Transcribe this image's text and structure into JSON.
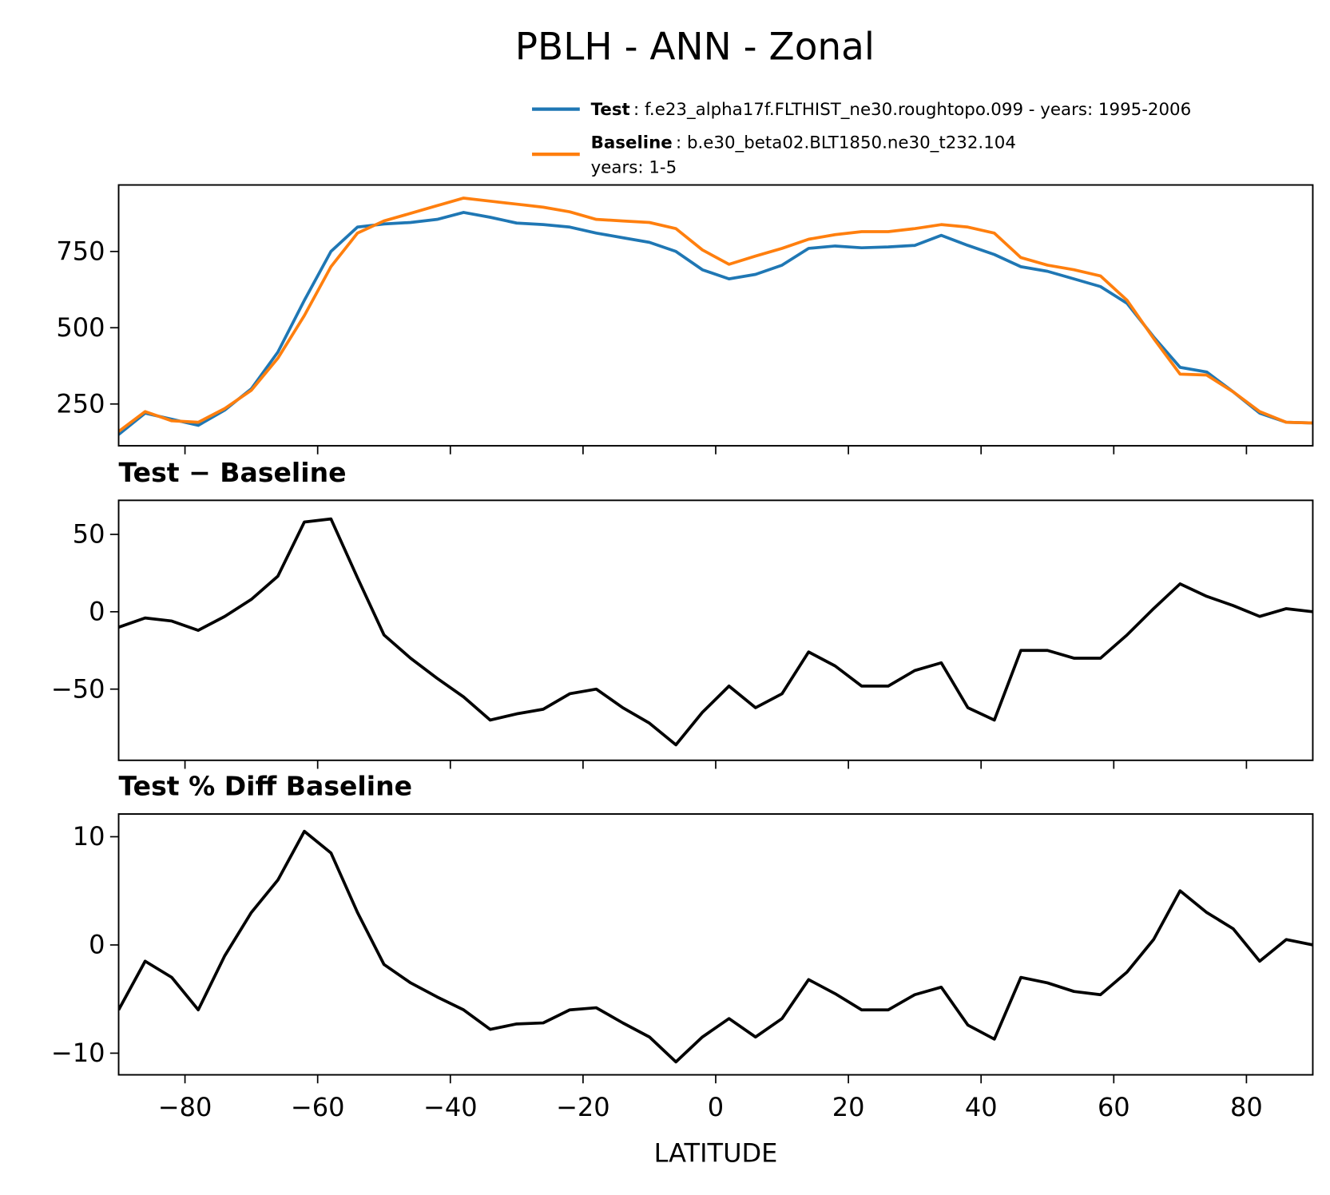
{
  "chart_data": [
    {
      "type": "line",
      "title": "PBLH - ANN - Zonal",
      "x": [
        -90,
        -86,
        -82,
        -78,
        -74,
        -70,
        -66,
        -62,
        -58,
        -54,
        -50,
        -46,
        -42,
        -38,
        -34,
        -30,
        -26,
        -22,
        -18,
        -14,
        -10,
        -6,
        -2,
        2,
        6,
        10,
        14,
        18,
        22,
        26,
        30,
        34,
        38,
        42,
        46,
        50,
        54,
        58,
        62,
        66,
        70,
        74,
        78,
        82,
        86,
        90
      ],
      "xlim": [
        -90,
        90
      ],
      "ylim": [
        113,
        968
      ],
      "yticks": [
        250,
        500,
        750
      ],
      "series": [
        {
          "name": "Test",
          "label_lines": [
            ": f.e23_alpha17f.FLTHIST_ne30.roughtopo.099 - years: 1995-2006"
          ],
          "color": "#1f77b4",
          "values": [
            150,
            220,
            200,
            180,
            230,
            300,
            420,
            590,
            750,
            830,
            840,
            845,
            855,
            878,
            862,
            843,
            838,
            830,
            810,
            795,
            780,
            750,
            690,
            660,
            675,
            705,
            760,
            768,
            762,
            765,
            770,
            803,
            770,
            740,
            700,
            685,
            660,
            635,
            580,
            470,
            370,
            355,
            290,
            220,
            190,
            188
          ]
        },
        {
          "name": "Baseline",
          "label_lines": [
            ": b.e30_beta02.BLT1850.ne30_t232.104",
            "years: 1-5"
          ],
          "color": "#ff7f0e",
          "values": [
            160,
            225,
            195,
            190,
            235,
            295,
            400,
            540,
            700,
            810,
            850,
            875,
            900,
            925,
            915,
            905,
            895,
            880,
            855,
            850,
            845,
            825,
            755,
            708,
            735,
            760,
            790,
            805,
            815,
            815,
            825,
            838,
            830,
            810,
            730,
            705,
            690,
            670,
            590,
            465,
            348,
            345,
            290,
            225,
            190,
            188
          ]
        }
      ]
    },
    {
      "type": "line",
      "title": "Test − Baseline",
      "ylim": [
        -96,
        72
      ],
      "yticks": [
        {
          "value": -50,
          "label": "−50"
        },
        0,
        50
      ],
      "series": [
        {
          "color": "#000000",
          "values": [
            -10,
            -4,
            -6,
            -12,
            -3,
            8,
            23,
            58,
            60,
            22,
            -15,
            -30,
            -43,
            -55,
            -70,
            -66,
            -63,
            -53,
            -50,
            -62,
            -72,
            -86,
            -65,
            -48,
            -62,
            -53,
            -26,
            -35,
            -48,
            -48,
            -38,
            -33,
            -62,
            -70,
            -25,
            -25,
            -30,
            -30,
            -15,
            2,
            18,
            10,
            4,
            -3,
            2,
            0
          ]
        }
      ]
    },
    {
      "type": "line",
      "title": "Test % Diff Baseline",
      "xlabel": "LATITUDE",
      "xticks": [
        {
          "value": -80,
          "label": "−80"
        },
        {
          "value": -60,
          "label": "−60"
        },
        {
          "value": -40,
          "label": "−40"
        },
        {
          "value": -20,
          "label": "−20"
        },
        0,
        20,
        40,
        60,
        80
      ],
      "ylim": [
        -12,
        12.1
      ],
      "yticks": [
        {
          "value": -10,
          "label": "−10"
        },
        0,
        10
      ],
      "series": [
        {
          "color": "#000000",
          "values": [
            -6,
            -1.5,
            -3,
            -6,
            -1,
            3,
            6,
            10.5,
            8.5,
            3,
            -1.8,
            -3.5,
            -4.8,
            -6,
            -7.8,
            -7.3,
            -7.2,
            -6,
            -5.8,
            -7.2,
            -8.5,
            -10.8,
            -8.5,
            -6.8,
            -8.5,
            -6.8,
            -3.2,
            -4.5,
            -6,
            -6,
            -4.6,
            -3.9,
            -7.4,
            -8.7,
            -3,
            -3.5,
            -4.3,
            -4.6,
            -2.5,
            0.5,
            5,
            3,
            1.5,
            -1.5,
            0.5,
            0
          ]
        }
      ]
    }
  ]
}
